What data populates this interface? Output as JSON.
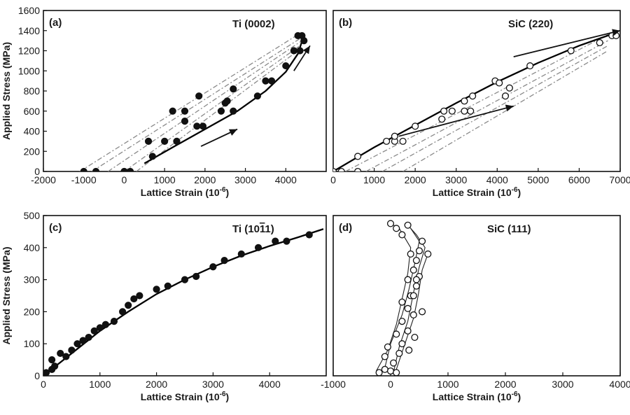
{
  "chart_data": [
    {
      "panel_label": "(a)",
      "title": "Ti (0002)",
      "type": "scatter",
      "xlabel": "Lattice Strain (10",
      "xlabel_sup": "-6",
      "ylabel": "Applied Stress (MPa)",
      "xlim": [
        -2000,
        5000
      ],
      "ylim": [
        0,
        1600
      ],
      "xticks": [
        -2000,
        -1000,
        0,
        1000,
        2000,
        3000,
        4000
      ],
      "yticks": [
        0,
        200,
        400,
        600,
        800,
        1000,
        1200,
        1400,
        1600
      ],
      "marker": "filled",
      "points": [
        [
          -1000,
          0
        ],
        [
          -700,
          0
        ],
        [
          0,
          0
        ],
        [
          150,
          0
        ],
        [
          700,
          150
        ],
        [
          600,
          300
        ],
        [
          1000,
          300
        ],
        [
          1300,
          300
        ],
        [
          1200,
          600
        ],
        [
          1500,
          600
        ],
        [
          1500,
          500
        ],
        [
          1850,
          750
        ],
        [
          1800,
          450
        ],
        [
          1950,
          450
        ],
        [
          2400,
          600
        ],
        [
          2700,
          600
        ],
        [
          2700,
          820
        ],
        [
          2500,
          680
        ],
        [
          2550,
          700
        ],
        [
          3300,
          750
        ],
        [
          3500,
          900
        ],
        [
          3650,
          900
        ],
        [
          4000,
          1050
        ],
        [
          4200,
          1200
        ],
        [
          4350,
          1200
        ],
        [
          4400,
          1350
        ],
        [
          4450,
          1300
        ],
        [
          4300,
          1350
        ]
      ],
      "fit_curve": [
        [
          500,
          80
        ],
        [
          1200,
          240
        ],
        [
          2000,
          420
        ],
        [
          2800,
          600
        ],
        [
          3500,
          800
        ],
        [
          4000,
          990
        ],
        [
          4300,
          1170
        ],
        [
          4430,
          1330
        ]
      ],
      "dashed_lines": [
        [
          [
            -1100,
            0
          ],
          [
            4300,
            1360
          ]
        ],
        [
          [
            -800,
            0
          ],
          [
            4350,
            1320
          ]
        ],
        [
          [
            -400,
            0
          ],
          [
            4400,
            1300
          ]
        ],
        [
          [
            0,
            0
          ],
          [
            4350,
            1250
          ]
        ],
        [
          [
            300,
            0
          ],
          [
            4300,
            1200
          ]
        ]
      ],
      "arrows": [
        [
          [
            1900,
            250
          ],
          [
            2800,
            420
          ]
        ],
        [
          [
            4200,
            1000
          ],
          [
            4600,
            1250
          ]
        ]
      ]
    },
    {
      "panel_label": "(b)",
      "title": "SiC (220)",
      "type": "scatter",
      "xlabel": "Lattice Strain (10",
      "xlabel_sup": "-6",
      "ylabel": "",
      "xlim": [
        0,
        7000
      ],
      "ylim": [
        0,
        1600
      ],
      "xticks": [
        0,
        1000,
        2000,
        3000,
        4000,
        5000,
        6000,
        7000
      ],
      "yticks": [],
      "marker": "open",
      "points": [
        [
          0,
          0
        ],
        [
          200,
          0
        ],
        [
          600,
          0
        ],
        [
          600,
          150
        ],
        [
          1300,
          300
        ],
        [
          1500,
          300
        ],
        [
          1700,
          300
        ],
        [
          1500,
          350
        ],
        [
          2000,
          450
        ],
        [
          2650,
          520
        ],
        [
          2700,
          600
        ],
        [
          2900,
          600
        ],
        [
          3200,
          600
        ],
        [
          3350,
          600
        ],
        [
          3200,
          700
        ],
        [
          3400,
          750
        ],
        [
          3950,
          900
        ],
        [
          4050,
          880
        ],
        [
          4200,
          750
        ],
        [
          4300,
          830
        ],
        [
          4800,
          1050
        ],
        [
          5800,
          1200
        ],
        [
          6500,
          1280
        ],
        [
          6800,
          1350
        ],
        [
          6900,
          1350
        ]
      ],
      "fit_curve": [
        [
          0,
          0
        ],
        [
          1000,
          240
        ],
        [
          2000,
          460
        ],
        [
          3000,
          680
        ],
        [
          4000,
          890
        ],
        [
          5000,
          1080
        ],
        [
          6000,
          1250
        ],
        [
          6900,
          1380
        ]
      ],
      "dashed_lines": [
        [
          [
            300,
            0
          ],
          [
            6700,
            1360
          ]
        ],
        [
          [
            800,
            0
          ],
          [
            6700,
            1300
          ]
        ],
        [
          [
            1200,
            0
          ],
          [
            6700,
            1250
          ]
        ],
        [
          [
            1700,
            0
          ],
          [
            6700,
            1200
          ]
        ]
      ],
      "arrows": [
        [
          [
            1600,
            350
          ],
          [
            4400,
            650
          ]
        ],
        [
          [
            4400,
            1140
          ],
          [
            7000,
            1400
          ]
        ]
      ]
    },
    {
      "panel_label": "(c)",
      "title": "Ti (10",
      "title_overbar": "1",
      "title_end": "1)",
      "type": "scatter",
      "xlabel": "Lattice Strain (10",
      "xlabel_sup": "-6",
      "ylabel": "Applied Stress (MPa)",
      "xlim": [
        0,
        5000
      ],
      "ylim": [
        0,
        500
      ],
      "xticks": [
        0,
        1000,
        2000,
        3000,
        4000
      ],
      "yticks": [
        0,
        100,
        200,
        300,
        400,
        500
      ],
      "marker": "filled",
      "points": [
        [
          0,
          5
        ],
        [
          50,
          10
        ],
        [
          150,
          20
        ],
        [
          200,
          30
        ],
        [
          150,
          50
        ],
        [
          300,
          70
        ],
        [
          400,
          60
        ],
        [
          500,
          80
        ],
        [
          600,
          100
        ],
        [
          700,
          110
        ],
        [
          800,
          120
        ],
        [
          900,
          140
        ],
        [
          1000,
          150
        ],
        [
          1100,
          160
        ],
        [
          1250,
          170
        ],
        [
          1400,
          200
        ],
        [
          1500,
          220
        ],
        [
          1600,
          240
        ],
        [
          1700,
          250
        ],
        [
          2000,
          270
        ],
        [
          2200,
          280
        ],
        [
          2500,
          300
        ],
        [
          2700,
          310
        ],
        [
          3000,
          340
        ],
        [
          3200,
          360
        ],
        [
          3500,
          380
        ],
        [
          3800,
          400
        ],
        [
          4100,
          420
        ],
        [
          4300,
          420
        ],
        [
          4700,
          440
        ]
      ],
      "fit_curve": [
        [
          0,
          0
        ],
        [
          500,
          70
        ],
        [
          1000,
          140
        ],
        [
          1500,
          200
        ],
        [
          2000,
          255
        ],
        [
          2500,
          300
        ],
        [
          3000,
          340
        ],
        [
          3500,
          375
        ],
        [
          4000,
          405
        ],
        [
          4500,
          432
        ],
        [
          4950,
          458
        ]
      ],
      "arrows": []
    },
    {
      "panel_label": "(d)",
      "title": "SiC (111)",
      "type": "scatter",
      "xlabel": "Lattice Strain (10",
      "xlabel_sup": "-6",
      "ylabel": "",
      "xlim": [
        -1000,
        4000
      ],
      "ylim": [
        0,
        500
      ],
      "xticks": [
        -1000,
        0,
        1000,
        2000,
        3000,
        4000
      ],
      "yticks": [],
      "marker": "open",
      "points": [
        [
          -200,
          10
        ],
        [
          -100,
          20
        ],
        [
          0,
          15
        ],
        [
          100,
          10
        ],
        [
          50,
          40
        ],
        [
          -100,
          60
        ],
        [
          150,
          70
        ],
        [
          -50,
          90
        ],
        [
          200,
          100
        ],
        [
          100,
          130
        ],
        [
          300,
          140
        ],
        [
          200,
          170
        ],
        [
          400,
          190
        ],
        [
          300,
          210
        ],
        [
          200,
          230
        ],
        [
          350,
          250
        ],
        [
          450,
          280
        ],
        [
          300,
          300
        ],
        [
          500,
          310
        ],
        [
          400,
          330
        ],
        [
          450,
          360
        ],
        [
          350,
          380
        ],
        [
          500,
          390
        ],
        [
          650,
          380
        ],
        [
          550,
          420
        ],
        [
          200,
          440
        ],
        [
          100,
          460
        ],
        [
          300,
          470
        ],
        [
          0,
          475
        ],
        [
          450,
          300
        ],
        [
          400,
          250
        ],
        [
          550,
          200
        ],
        [
          420,
          120
        ],
        [
          320,
          80
        ]
      ],
      "polyline_paths": [
        [
          [
            -250,
            15
          ],
          [
            -50,
            80
          ],
          [
            100,
            160
          ],
          [
            200,
            240
          ],
          [
            300,
            320
          ],
          [
            350,
            400
          ],
          [
            150,
            460
          ],
          [
            0,
            475
          ]
        ],
        [
          [
            50,
            10
          ],
          [
            150,
            90
          ],
          [
            300,
            170
          ],
          [
            400,
            260
          ],
          [
            500,
            340
          ],
          [
            600,
            400
          ],
          [
            450,
            440
          ],
          [
            300,
            470
          ]
        ],
        [
          [
            -100,
            25
          ],
          [
            0,
            100
          ],
          [
            200,
            190
          ],
          [
            320,
            270
          ],
          [
            420,
            350
          ],
          [
            500,
            420
          ],
          [
            350,
            460
          ]
        ],
        [
          [
            100,
            20
          ],
          [
            250,
            100
          ],
          [
            400,
            180
          ],
          [
            480,
            250
          ],
          [
            550,
            330
          ],
          [
            650,
            380
          ]
        ]
      ],
      "arrows": []
    }
  ]
}
